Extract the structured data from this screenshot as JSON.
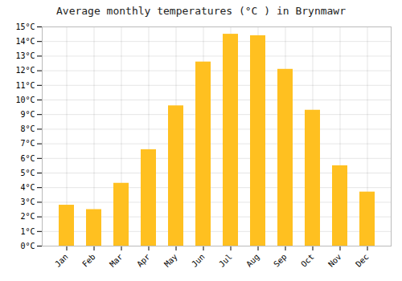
{
  "chart_data": {
    "type": "bar",
    "title": "Average monthly temperatures (°C ) in Brynmawr",
    "categories": [
      "Jan",
      "Feb",
      "Mar",
      "Apr",
      "May",
      "Jun",
      "Jul",
      "Aug",
      "Sep",
      "Oct",
      "Nov",
      "Dec"
    ],
    "values": [
      2.8,
      2.5,
      4.3,
      6.6,
      9.6,
      12.6,
      14.5,
      14.4,
      12.1,
      9.3,
      5.5,
      3.7
    ],
    "color": "#FFC020",
    "ylim": [
      0,
      15
    ],
    "yticks": [
      {
        "value": 0,
        "label": "0°C"
      },
      {
        "value": 1,
        "label": "1°C"
      },
      {
        "value": 2,
        "label": "2°C"
      },
      {
        "value": 3,
        "label": "3°C"
      },
      {
        "value": 4,
        "label": "4°C"
      },
      {
        "value": 5,
        "label": "5°C"
      },
      {
        "value": 6,
        "label": "6°C"
      },
      {
        "value": 7,
        "label": "7°C"
      },
      {
        "value": 8,
        "label": "8°C"
      },
      {
        "value": 9,
        "label": "9°C"
      },
      {
        "value": 10,
        "label": "10°C"
      },
      {
        "value": 11,
        "label": "11°C"
      },
      {
        "value": 12,
        "label": "12°C"
      },
      {
        "value": 13,
        "label": "13°C"
      },
      {
        "value": 14,
        "label": "14°C"
      },
      {
        "value": 15,
        "label": "15°C"
      }
    ],
    "grid": true
  }
}
